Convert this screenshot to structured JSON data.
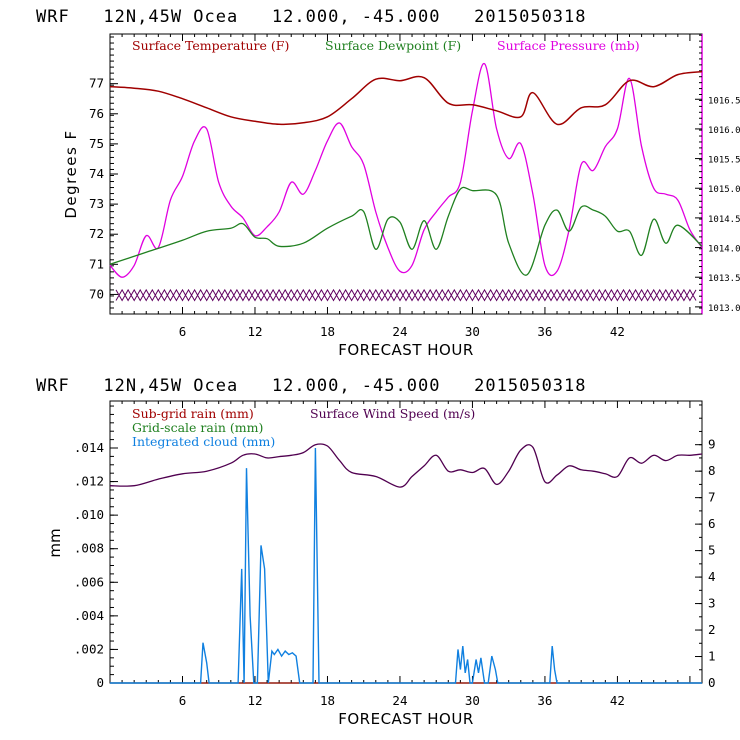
{
  "chart_data": [
    {
      "type": "line",
      "title": "WRF   12N,45W Ocea   12.000, -45.000   2015050318",
      "xlabel": "FORECAST HOUR",
      "ylabel": "Degrees F",
      "xlim": [
        0,
        49
      ],
      "ylim": [
        69.35,
        78.65
      ],
      "y2lim": [
        1012.88,
        1017.6
      ],
      "xticks": [
        6,
        12,
        18,
        24,
        30,
        36,
        42
      ],
      "xtick_labels": [
        "6",
        "12",
        "18",
        "24",
        "30",
        "36",
        "42"
      ],
      "yticks": [
        70,
        71,
        72,
        73,
        74,
        75,
        76,
        77
      ],
      "ytick_labels": [
        "70",
        "71",
        "72",
        "73",
        "74",
        "75",
        "76",
        "77"
      ],
      "y2ticks": [
        1013.0,
        1013.5,
        1014.0,
        1014.5,
        1015.0,
        1015.5,
        1016.0,
        1016.5
      ],
      "y2tick_labels": [
        "1013.0",
        "1013.5",
        "1014.0",
        "1014.5",
        "1015.0",
        "1015.5",
        "1016.0",
        "1016.5"
      ],
      "legend_position": "top",
      "series": [
        {
          "name": "Surface Temperature (F)",
          "color": "#a00000",
          "axis": "left",
          "x": [
            0,
            2,
            4,
            6,
            8,
            10,
            12,
            14,
            16,
            18,
            20,
            22,
            24,
            26,
            28,
            30,
            32,
            34,
            35,
            37,
            39,
            41,
            43,
            45,
            47,
            49
          ],
          "y": [
            76.9,
            76.85,
            76.75,
            76.5,
            76.2,
            75.9,
            75.75,
            75.65,
            75.7,
            75.9,
            76.5,
            77.15,
            77.1,
            77.2,
            76.35,
            76.3,
            76.1,
            75.9,
            76.7,
            75.65,
            76.2,
            76.3,
            77.1,
            76.9,
            77.3,
            77.4
          ]
        },
        {
          "name": "Surface Dewpoint (F)",
          "color": "#208020",
          "axis": "left",
          "x": [
            0,
            3,
            6,
            8,
            10,
            11,
            12,
            13,
            14,
            16,
            18,
            20,
            21,
            22,
            23,
            24,
            25,
            26,
            27,
            28,
            29,
            30,
            32,
            33,
            34.5,
            36,
            37,
            38,
            39,
            40,
            41,
            42,
            43,
            44,
            45,
            46,
            47,
            49
          ],
          "y": [
            71.0,
            71.4,
            71.8,
            72.1,
            72.2,
            72.35,
            71.9,
            71.85,
            71.6,
            71.7,
            72.2,
            72.6,
            72.75,
            71.5,
            72.5,
            72.4,
            71.5,
            72.45,
            71.5,
            72.6,
            73.5,
            73.45,
            73.3,
            71.7,
            70.65,
            72.3,
            72.8,
            72.1,
            72.9,
            72.8,
            72.6,
            72.1,
            72.1,
            71.3,
            72.5,
            71.7,
            72.3,
            71.6
          ]
        },
        {
          "name": "Surface Pressure (mb)",
          "color": "#e000e0",
          "axis": "right",
          "x": [
            0,
            1,
            2,
            3,
            4,
            5,
            6,
            7,
            8,
            9,
            10,
            11,
            12,
            13,
            14,
            15,
            16,
            17,
            18,
            19,
            20,
            21,
            22,
            23,
            24,
            25,
            26,
            27,
            28,
            29,
            30,
            31,
            32,
            33,
            34,
            35,
            36,
            37,
            38,
            39,
            40,
            41,
            42,
            43,
            44,
            45,
            46,
            47,
            48,
            49
          ],
          "y": [
            1013.7,
            1013.5,
            1013.7,
            1014.2,
            1014.0,
            1014.8,
            1015.2,
            1015.8,
            1016.0,
            1015.1,
            1014.7,
            1014.5,
            1014.2,
            1014.35,
            1014.6,
            1015.1,
            1014.9,
            1015.3,
            1015.8,
            1016.1,
            1015.7,
            1015.4,
            1014.6,
            1014.0,
            1013.6,
            1013.7,
            1014.3,
            1014.6,
            1014.85,
            1015.1,
            1016.3,
            1017.1,
            1016.0,
            1015.5,
            1015.75,
            1014.9,
            1013.7,
            1013.6,
            1014.3,
            1015.4,
            1015.3,
            1015.7,
            1016.0,
            1016.85,
            1015.7,
            1015.0,
            1014.9,
            1014.8,
            1014.3,
            1014.0
          ]
        }
      ]
    },
    {
      "type": "line",
      "title": "WRF   12N,45W Ocea   12.000, -45.000   2015050318",
      "xlabel": "FORECAST HOUR",
      "ylabel": "mm",
      "xlim": [
        0,
        49
      ],
      "ylim": [
        0,
        0.0168
      ],
      "y2lim": [
        0,
        10.65
      ],
      "xticks": [
        6,
        12,
        18,
        24,
        30,
        36,
        42
      ],
      "xtick_labels": [
        "6",
        "12",
        "18",
        "24",
        "30",
        "36",
        "42"
      ],
      "yticks": [
        0,
        0.002,
        0.004,
        0.006,
        0.008,
        0.01,
        0.012,
        0.014
      ],
      "ytick_labels": [
        "0",
        ".002",
        ".004",
        ".006",
        ".008",
        ".010",
        ".012",
        ".014"
      ],
      "y2ticks": [
        0,
        1,
        2,
        3,
        4,
        5,
        6,
        7,
        8,
        9
      ],
      "y2tick_labels": [
        "0",
        "1",
        "2",
        "3",
        "4",
        "5",
        "6",
        "7",
        "8",
        "9"
      ],
      "legend_position": "top-left",
      "series": [
        {
          "name": "Sub-grid rain (mm)",
          "color": "#a00000",
          "axis": "left",
          "x": [
            0,
            49
          ],
          "y": [
            0,
            0
          ]
        },
        {
          "name": "Grid-scale rain (mm)",
          "color": "#208020",
          "axis": "left",
          "x": [
            0,
            49
          ],
          "y": [
            0,
            0
          ]
        },
        {
          "name": "Integrated cloud (mm)",
          "color": "#1080e0",
          "axis": "left",
          "x": [
            0,
            7.5,
            7.7,
            8.0,
            8.2,
            10.6,
            10.9,
            11.1,
            11.3,
            11.6,
            11.9,
            12.2,
            12.5,
            12.8,
            13.1,
            13.4,
            13.6,
            13.9,
            14.2,
            14.5,
            14.8,
            15.1,
            15.4,
            15.7,
            16.0,
            16.3,
            16.8,
            17.0,
            17.3,
            17.5,
            28.6,
            28.8,
            29.0,
            29.2,
            29.4,
            29.6,
            29.8,
            30.0,
            30.3,
            30.5,
            30.7,
            31.0,
            31.3,
            31.6,
            31.9,
            32.1,
            32.3,
            32.5,
            36.4,
            36.6,
            36.8,
            37.0,
            49
          ],
          "y": [
            0,
            0,
            0.0024,
            0.0012,
            0,
            0,
            0.0068,
            0,
            0.0128,
            0.004,
            0,
            0,
            0.0082,
            0.0068,
            0,
            0.0019,
            0.0017,
            0.002,
            0.0016,
            0.0019,
            0.0017,
            0.0018,
            0.0016,
            0,
            0,
            0,
            0,
            0.014,
            0,
            0,
            0,
            0.002,
            0.0008,
            0.0022,
            0.0006,
            0.0014,
            0,
            0,
            0.0014,
            0.0006,
            0.0015,
            0,
            0,
            0.0016,
            0.0008,
            0,
            0,
            0,
            0,
            0.0022,
            0.0008,
            0,
            0
          ]
        },
        {
          "name": "Surface Wind Speed (m/s)",
          "color": "#500050",
          "axis": "right",
          "x": [
            0,
            2,
            4,
            6,
            8,
            10,
            11,
            12,
            13,
            14,
            15,
            16,
            17,
            18,
            19,
            20,
            22,
            24,
            25,
            26,
            27,
            28,
            29,
            30,
            31,
            32,
            33,
            34,
            35,
            36,
            37,
            38,
            39,
            40,
            41,
            42,
            43,
            44,
            45,
            46,
            47,
            48,
            49
          ],
          "y": [
            7.45,
            7.45,
            7.7,
            7.9,
            8.0,
            8.3,
            8.6,
            8.65,
            8.5,
            8.55,
            8.6,
            8.7,
            9.0,
            8.95,
            8.4,
            7.95,
            7.8,
            7.4,
            7.8,
            8.2,
            8.6,
            8.0,
            8.05,
            7.95,
            8.1,
            7.5,
            8.0,
            8.8,
            8.9,
            7.6,
            7.85,
            8.2,
            8.05,
            8.0,
            7.9,
            7.8,
            8.5,
            8.3,
            8.6,
            8.4,
            8.6,
            8.6,
            8.65
          ]
        }
      ]
    }
  ]
}
